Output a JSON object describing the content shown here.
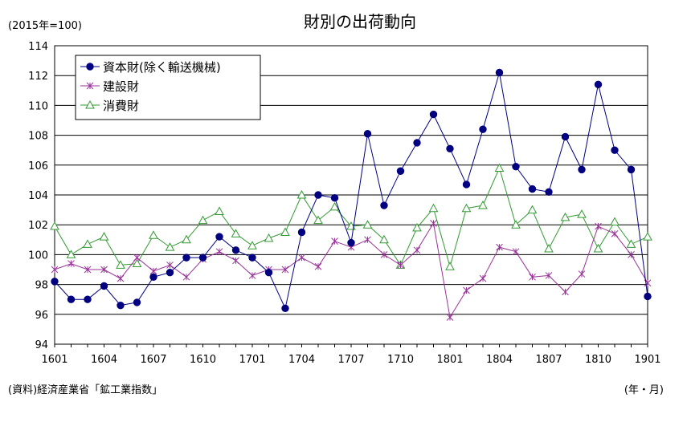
{
  "chart_data": {
    "type": "line",
    "title": "財別の出荷動向",
    "unit_note": "(2015年=100)",
    "source_note": "(資料)経済産業省「鉱工業指数」",
    "xlabel": "(年・月)",
    "ylim": [
      94,
      114
    ],
    "yticks": [
      "94",
      "96",
      "98",
      "100",
      "102",
      "104",
      "106",
      "108",
      "110",
      "112",
      "114"
    ],
    "x": [
      "1601",
      "1602",
      "1603",
      "1604",
      "1605",
      "1606",
      "1607",
      "1608",
      "1609",
      "1610",
      "1611",
      "1612",
      "1701",
      "1702",
      "1703",
      "1704",
      "1705",
      "1706",
      "1707",
      "1708",
      "1709",
      "1710",
      "1711",
      "1712",
      "1801",
      "1802",
      "1803",
      "1804",
      "1805",
      "1806",
      "1807",
      "1808",
      "1809",
      "1810",
      "1811",
      "1812",
      "1901"
    ],
    "xtick_labels": [
      "1601",
      "1604",
      "1607",
      "1610",
      "1701",
      "1704",
      "1707",
      "1710",
      "1801",
      "1804",
      "1807",
      "1810",
      "1901"
    ],
    "grid": "horizontal",
    "legend_position": "top-left",
    "series": [
      {
        "name": "資本財(除く輸送機械)",
        "color": "#000080",
        "marker": "filled-circle",
        "values": [
          98.2,
          97.0,
          97.0,
          97.9,
          96.6,
          96.8,
          98.5,
          98.8,
          99.8,
          99.8,
          101.2,
          100.3,
          99.8,
          98.8,
          96.4,
          101.5,
          104.0,
          103.8,
          100.8,
          108.1,
          103.3,
          105.6,
          107.5,
          109.4,
          107.1,
          104.7,
          108.4,
          112.2,
          105.9,
          104.4,
          104.2,
          107.9,
          105.7,
          111.4,
          107.0,
          105.7,
          97.2
        ]
      },
      {
        "name": "建設財",
        "color": "#993399",
        "marker": "asterisk",
        "values": [
          99.0,
          99.4,
          99.0,
          99.0,
          98.4,
          99.8,
          98.9,
          99.3,
          98.5,
          99.7,
          100.2,
          99.6,
          98.6,
          99.0,
          99.0,
          99.8,
          99.2,
          100.9,
          100.5,
          101.0,
          100.0,
          99.3,
          100.3,
          102.1,
          95.8,
          97.6,
          98.4,
          100.5,
          100.2,
          98.5,
          98.6,
          97.5,
          98.7,
          101.9,
          101.4,
          100.0,
          98.1
        ]
      },
      {
        "name": "消費財",
        "color": "#339933",
        "marker": "open-triangle",
        "values": [
          101.9,
          100.0,
          100.7,
          101.2,
          99.3,
          99.4,
          101.3,
          100.5,
          101.0,
          102.3,
          102.9,
          101.4,
          100.6,
          101.1,
          101.5,
          104.0,
          102.3,
          103.2,
          101.9,
          102.0,
          101.0,
          99.3,
          101.8,
          103.1,
          99.2,
          103.1,
          103.3,
          105.8,
          102.0,
          103.0,
          100.4,
          102.5,
          102.7,
          100.4,
          102.2,
          100.7,
          101.2
        ]
      }
    ]
  }
}
